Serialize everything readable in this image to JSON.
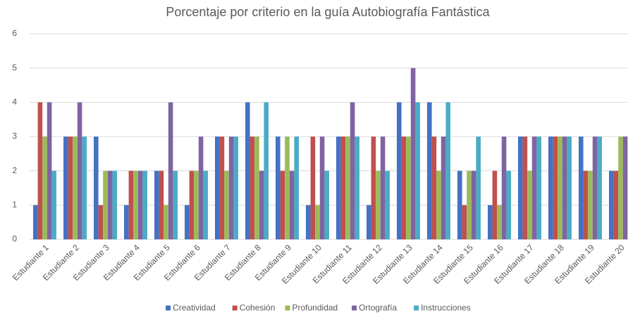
{
  "chart_data": {
    "type": "bar",
    "title": "Porcentaje por criterio en la guía Autobiografía Fantástica",
    "categories": [
      "Estudiante 1",
      "Estudiante 2",
      "Estudiante 3",
      "Estudiante 4",
      "Estudiante 5",
      "Estudiante 6",
      "Estudiante 7",
      "Estudiante 8",
      "Estudiante 9",
      "Estudiante 10",
      "Estudiante 11",
      "Estudiante 12",
      "Estudiante 13",
      "Estudiante 14",
      "Estudiante 15",
      "Estudiante 16",
      "Estudiante 17",
      "Estudiante 18",
      "Estudiante 19",
      "Estudiante 20"
    ],
    "series": [
      {
        "name": "Creatividad",
        "color": "#4472c4",
        "values": [
          1,
          3,
          3,
          1,
          2,
          1,
          3,
          4,
          3,
          1,
          3,
          1,
          4,
          4,
          2,
          1,
          3,
          3,
          3,
          2
        ]
      },
      {
        "name": "Cohesión",
        "color": "#c0504d",
        "values": [
          4,
          3,
          1,
          2,
          2,
          2,
          3,
          3,
          2,
          3,
          3,
          3,
          3,
          3,
          1,
          2,
          3,
          3,
          2,
          2
        ]
      },
      {
        "name": "Profundidad",
        "color": "#9bbb59",
        "values": [
          3,
          3,
          2,
          2,
          1,
          2,
          2,
          3,
          3,
          1,
          3,
          2,
          3,
          2,
          2,
          1,
          2,
          3,
          2,
          3
        ]
      },
      {
        "name": "Ortografía",
        "color": "#8064a2",
        "values": [
          4,
          4,
          2,
          2,
          4,
          3,
          3,
          2,
          2,
          3,
          4,
          3,
          5,
          3,
          2,
          3,
          3,
          3,
          3,
          3
        ]
      },
      {
        "name": "Instrucciones",
        "color": "#4bacc6",
        "values": [
          2,
          3,
          2,
          2,
          2,
          2,
          3,
          4,
          3,
          2,
          3,
          2,
          4,
          4,
          3,
          2,
          3,
          3,
          3,
          null
        ]
      }
    ],
    "ylim": [
      0,
      6
    ],
    "yticks": [
      0,
      1,
      2,
      3,
      4,
      5,
      6
    ],
    "grid": true,
    "legend": "bottom"
  }
}
